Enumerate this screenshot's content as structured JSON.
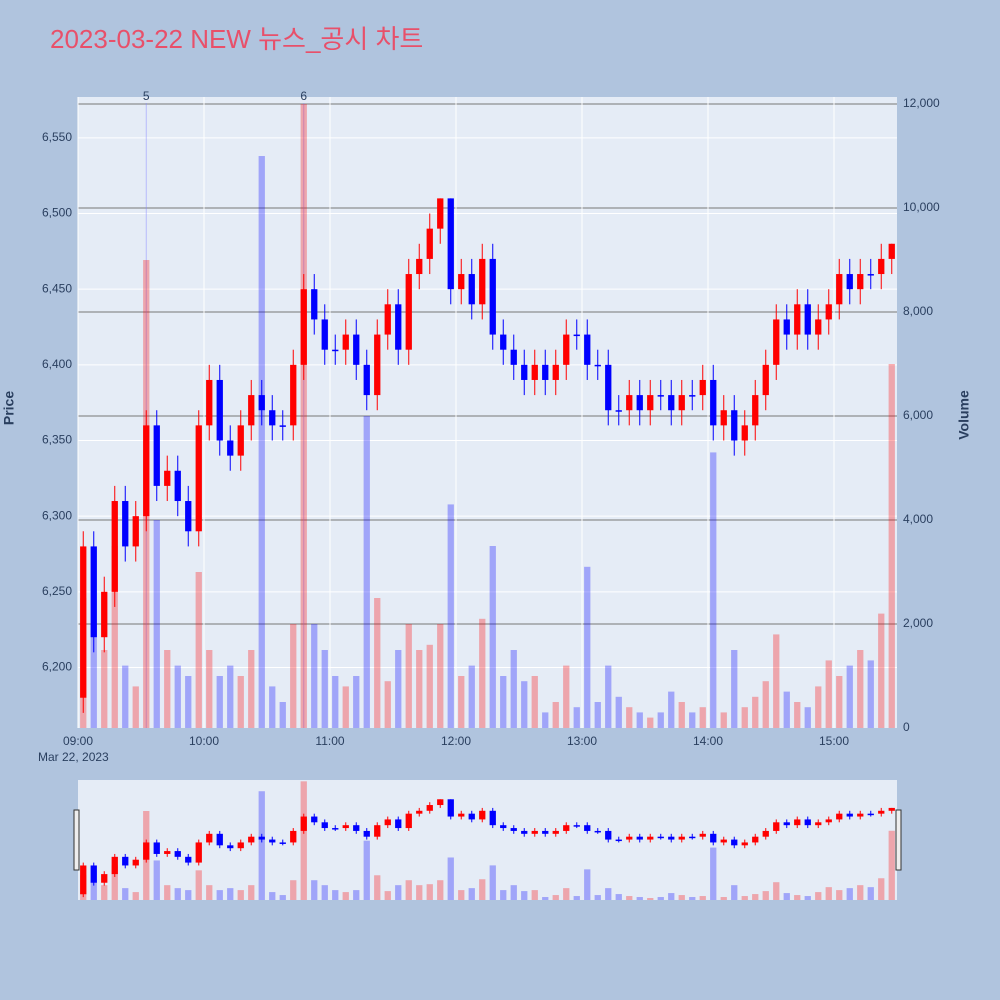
{
  "chart_data": {
    "type": "candlestick",
    "title": "2023-03-22 NEW 뉴스_공시 차트",
    "y_label": "Price",
    "y2_label": "Volume",
    "x_date_label": "Mar 22, 2023",
    "increasing_color": "#ff0000",
    "decreasing_color": "#0000ff",
    "x": [
      "09:00",
      "09:05",
      "09:10",
      "09:15",
      "09:20",
      "09:25",
      "09:30",
      "09:35",
      "09:40",
      "09:45",
      "09:50",
      "09:55",
      "10:00",
      "10:05",
      "10:10",
      "10:15",
      "10:20",
      "10:25",
      "10:30",
      "10:35",
      "10:40",
      "10:45",
      "10:50",
      "10:55",
      "11:00",
      "11:05",
      "11:10",
      "11:15",
      "11:20",
      "11:25",
      "11:30",
      "11:35",
      "11:40",
      "11:45",
      "11:50",
      "11:55",
      "12:00",
      "12:05",
      "12:10",
      "12:15",
      "12:20",
      "12:25",
      "12:30",
      "12:35",
      "12:40",
      "12:45",
      "12:50",
      "12:55",
      "13:00",
      "13:05",
      "13:10",
      "13:15",
      "13:20",
      "13:25",
      "13:30",
      "13:35",
      "13:40",
      "13:45",
      "13:50",
      "13:55",
      "14:00",
      "14:05",
      "14:10",
      "14:15",
      "14:20",
      "14:25",
      "14:30",
      "14:35",
      "14:40",
      "14:45",
      "14:50",
      "14:55",
      "15:00",
      "15:05",
      "15:10",
      "15:15",
      "15:20",
      "15:25"
    ],
    "open": [
      6180,
      6280,
      6220,
      6250,
      6310,
      6280,
      6300,
      6360,
      6320,
      6330,
      6310,
      6290,
      6360,
      6390,
      6350,
      6340,
      6360,
      6380,
      6370,
      6360,
      6360,
      6400,
      6450,
      6430,
      6410,
      6410,
      6420,
      6400,
      6380,
      6420,
      6440,
      6410,
      6460,
      6470,
      6490,
      6510,
      6450,
      6460,
      6440,
      6470,
      6420,
      6410,
      6400,
      6390,
      6400,
      6390,
      6400,
      6420,
      6420,
      6400,
      6400,
      6370,
      6370,
      6380,
      6370,
      6380,
      6380,
      6370,
      6380,
      6380,
      6390,
      6360,
      6370,
      6350,
      6360,
      6380,
      6400,
      6430,
      6420,
      6440,
      6420,
      6430,
      6440,
      6460,
      6450,
      6460,
      6460,
      6470
    ],
    "high": [
      6290,
      6290,
      6260,
      6320,
      6320,
      6310,
      6370,
      6370,
      6340,
      6340,
      6320,
      6370,
      6400,
      6400,
      6360,
      6370,
      6390,
      6390,
      6380,
      6370,
      6410,
      6460,
      6460,
      6440,
      6420,
      6430,
      6430,
      6410,
      6430,
      6450,
      6450,
      6470,
      6480,
      6500,
      6510,
      6510,
      6470,
      6470,
      6480,
      6480,
      6430,
      6420,
      6410,
      6410,
      6410,
      6410,
      6430,
      6430,
      6430,
      6410,
      6410,
      6380,
      6390,
      6390,
      6390,
      6390,
      6390,
      6390,
      6390,
      6400,
      6400,
      6380,
      6380,
      6370,
      6390,
      6410,
      6440,
      6440,
      6450,
      6450,
      6440,
      6450,
      6470,
      6470,
      6470,
      6470,
      6480,
      6480
    ],
    "low": [
      6170,
      6210,
      6210,
      6240,
      6270,
      6270,
      6290,
      6310,
      6310,
      6300,
      6280,
      6280,
      6350,
      6340,
      6330,
      6330,
      6350,
      6360,
      6350,
      6350,
      6350,
      6390,
      6420,
      6400,
      6400,
      6400,
      6390,
      6370,
      6370,
      6410,
      6400,
      6400,
      6450,
      6460,
      6480,
      6440,
      6440,
      6430,
      6430,
      6410,
      6400,
      6390,
      6380,
      6380,
      6380,
      6380,
      6390,
      6410,
      6390,
      6390,
      6360,
      6360,
      6360,
      6360,
      6360,
      6370,
      6360,
      6360,
      6370,
      6370,
      6350,
      6350,
      6340,
      6340,
      6350,
      6370,
      6390,
      6410,
      6410,
      6410,
      6410,
      6420,
      6430,
      6440,
      6440,
      6450,
      6450,
      6460
    ],
    "close": [
      6280,
      6220,
      6250,
      6310,
      6280,
      6300,
      6360,
      6320,
      6330,
      6310,
      6290,
      6360,
      6390,
      6350,
      6340,
      6360,
      6380,
      6370,
      6360,
      6360,
      6400,
      6450,
      6430,
      6410,
      6410,
      6420,
      6400,
      6380,
      6420,
      6440,
      6410,
      6460,
      6470,
      6490,
      6510,
      6450,
      6460,
      6440,
      6470,
      6420,
      6410,
      6400,
      6390,
      6400,
      6390,
      6400,
      6420,
      6420,
      6400,
      6400,
      6370,
      6370,
      6380,
      6370,
      6380,
      6380,
      6370,
      6380,
      6380,
      6390,
      6360,
      6370,
      6350,
      6360,
      6380,
      6400,
      6430,
      6420,
      6440,
      6420,
      6430,
      6440,
      6460,
      6450,
      6460,
      6460,
      6470,
      6480
    ],
    "volume": [
      2500,
      2000,
      1500,
      3500,
      1200,
      800,
      9000,
      4000,
      1500,
      1200,
      1000,
      3000,
      1500,
      1000,
      1200,
      1000,
      1500,
      11000,
      800,
      500,
      2000,
      12000,
      2000,
      1500,
      1000,
      800,
      1000,
      6000,
      2500,
      900,
      1500,
      2000,
      1500,
      1600,
      2000,
      4300,
      1000,
      1200,
      2100,
      3500,
      1000,
      1500,
      900,
      1000,
      300,
      500,
      1200,
      400,
      3100,
      500,
      1200,
      600,
      400,
      300,
      200,
      300,
      700,
      500,
      300,
      400,
      5300,
      300,
      1500,
      400,
      600,
      900,
      1800,
      700,
      500,
      400,
      800,
      1300,
      1000,
      1200,
      1500,
      1300,
      2200,
      7000
    ],
    "annotations": [
      {
        "text": "5",
        "x": "09:30"
      },
      {
        "text": "6",
        "x": "10:45"
      }
    ],
    "xlim": [
      "09:00",
      "15:30"
    ],
    "xticks": [
      "09:00",
      "10:00",
      "11:00",
      "12:00",
      "13:00",
      "14:00",
      "15:00"
    ],
    "ylim": [
      6160,
      6577
    ],
    "yticks": [
      {
        "value": 6200,
        "label": "6,200"
      },
      {
        "value": 6250,
        "label": "6,250"
      },
      {
        "value": 6300,
        "label": "6,300"
      },
      {
        "value": 6350,
        "label": "6,350"
      },
      {
        "value": 6400,
        "label": "6,400"
      },
      {
        "value": 6450,
        "label": "6,450"
      },
      {
        "value": 6500,
        "label": "6,500"
      },
      {
        "value": 6550,
        "label": "6,550"
      }
    ],
    "y2lim": [
      0,
      12135
    ],
    "y2ticks": [
      0,
      {
        "value": 2000,
        "label": "2,000"
      },
      {
        "value": 4000,
        "label": "4,000"
      },
      {
        "value": 6000,
        "label": "6,000"
      },
      {
        "value": 8000,
        "label": "8,000"
      },
      {
        "value": 10000,
        "label": "10,000"
      },
      {
        "value": 12000,
        "label": "12,000"
      }
    ],
    "grid": true,
    "range_slider": true
  }
}
